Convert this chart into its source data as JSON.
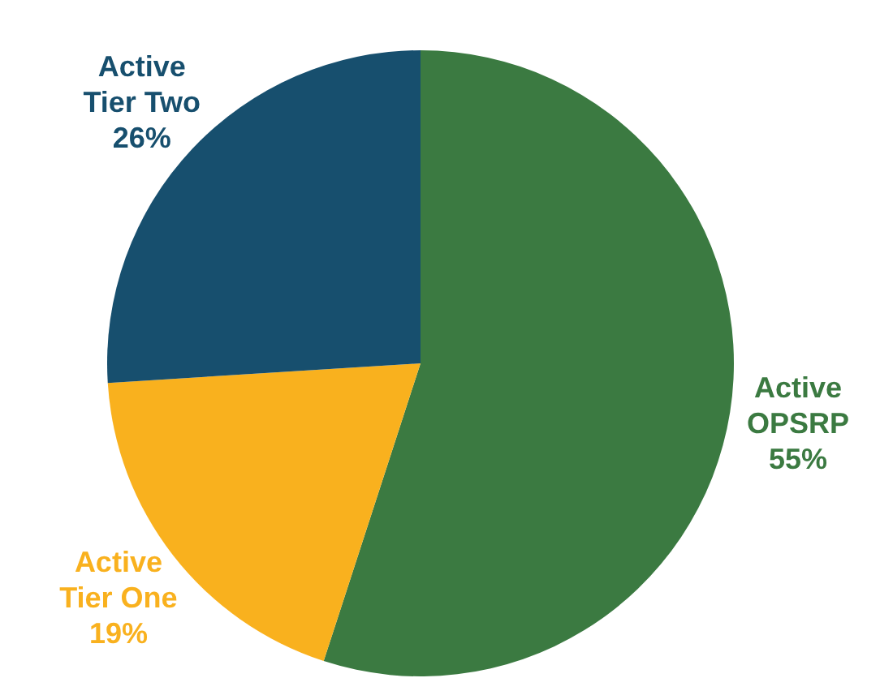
{
  "chart_data": {
    "type": "pie",
    "categories": [
      "Active OPSRP",
      "Active Tier One",
      "Active Tier Two"
    ],
    "values": [
      55,
      19,
      26
    ],
    "colors": [
      "#3b7a41",
      "#f9b11e",
      "#174f6e"
    ],
    "value_labels": [
      "55%",
      "19%",
      "26%"
    ]
  }
}
